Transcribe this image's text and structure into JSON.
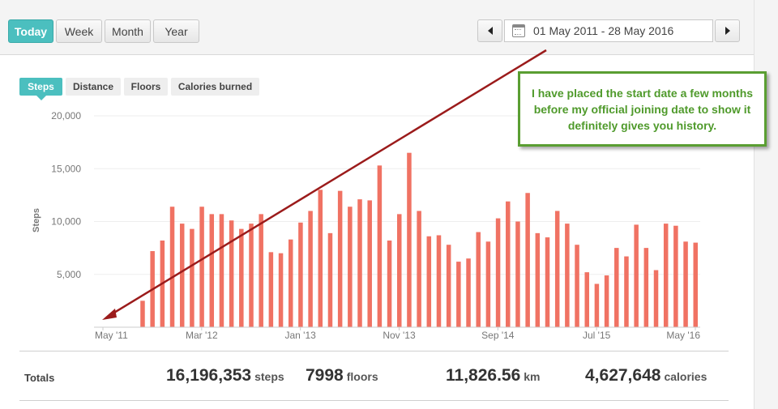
{
  "period_tabs": [
    "Today",
    "Week",
    "Month",
    "Year"
  ],
  "active_period": "Today",
  "date_range": "01 May 2011 - 28 May 2016",
  "metric_tabs": [
    "Steps",
    "Distance",
    "Floors",
    "Calories burned"
  ],
  "active_metric": "Steps",
  "callout": "I have placed the start date a few months before my official joining date to show it definitely gives you history.",
  "colors": {
    "accent": "#4bbfbf",
    "bar": "#f07263",
    "arrow": "#9b1b1b",
    "callout": "#4f9a2b"
  },
  "totals": {
    "label": "Totals",
    "steps": {
      "value": "16,196,353",
      "unit": "steps"
    },
    "floors": {
      "value": "7998",
      "unit": "floors"
    },
    "distance": {
      "value": "11,826.56",
      "unit": "km"
    },
    "calories": {
      "value": "4,627,648",
      "unit": "calories"
    }
  },
  "chart_data": {
    "type": "bar",
    "title": "",
    "xlabel": "",
    "ylabel": "Steps",
    "ylim": [
      0,
      20000
    ],
    "y_ticks": [
      "5,000",
      "10,000",
      "15,000",
      "20,000"
    ],
    "x_tick_labels": [
      "May '11",
      "Mar '12",
      "Jan '13",
      "Nov '13",
      "Sep '14",
      "Jul '15",
      "May '16"
    ],
    "grid": true,
    "categories": [
      "May '11",
      "Jun '11",
      "Jul '11",
      "Aug '11",
      "Sep '11",
      "Oct '11",
      "Nov '11",
      "Dec '11",
      "Jan '12",
      "Feb '12",
      "Mar '12",
      "Apr '12",
      "May '12",
      "Jun '12",
      "Jul '12",
      "Aug '12",
      "Sep '12",
      "Oct '12",
      "Nov '12",
      "Dec '12",
      "Jan '13",
      "Feb '13",
      "Mar '13",
      "Apr '13",
      "May '13",
      "Jun '13",
      "Jul '13",
      "Aug '13",
      "Sep '13",
      "Oct '13",
      "Nov '13",
      "Dec '13",
      "Jan '14",
      "Feb '14",
      "Mar '14",
      "Apr '14",
      "May '14",
      "Jun '14",
      "Jul '14",
      "Aug '14",
      "Sep '14",
      "Oct '14",
      "Nov '14",
      "Dec '14",
      "Jan '15",
      "Feb '15",
      "Mar '15",
      "Apr '15",
      "May '15",
      "Jun '15",
      "Jul '15",
      "Aug '15",
      "Sep '15",
      "Oct '15",
      "Nov '15",
      "Dec '15",
      "Jan '16",
      "Feb '16",
      "Mar '16",
      "Apr '16",
      "May '16"
    ],
    "values": [
      0,
      0,
      0,
      0,
      2500,
      7200,
      8200,
      11400,
      9800,
      9300,
      11400,
      10700,
      10700,
      10100,
      9300,
      9800,
      10700,
      7100,
      7000,
      8300,
      9900,
      11000,
      13000,
      8900,
      12900,
      11400,
      12100,
      12000,
      15300,
      8200,
      10700,
      16500,
      11000,
      8600,
      8700,
      7800,
      6200,
      6500,
      9000,
      8100,
      10300,
      11900,
      10000,
      12700,
      8900,
      8500,
      11000,
      9800,
      7800,
      5200,
      4100,
      4900,
      7500,
      6700,
      9700,
      7500,
      5400,
      9800,
      9600,
      8100,
      8000
    ]
  }
}
